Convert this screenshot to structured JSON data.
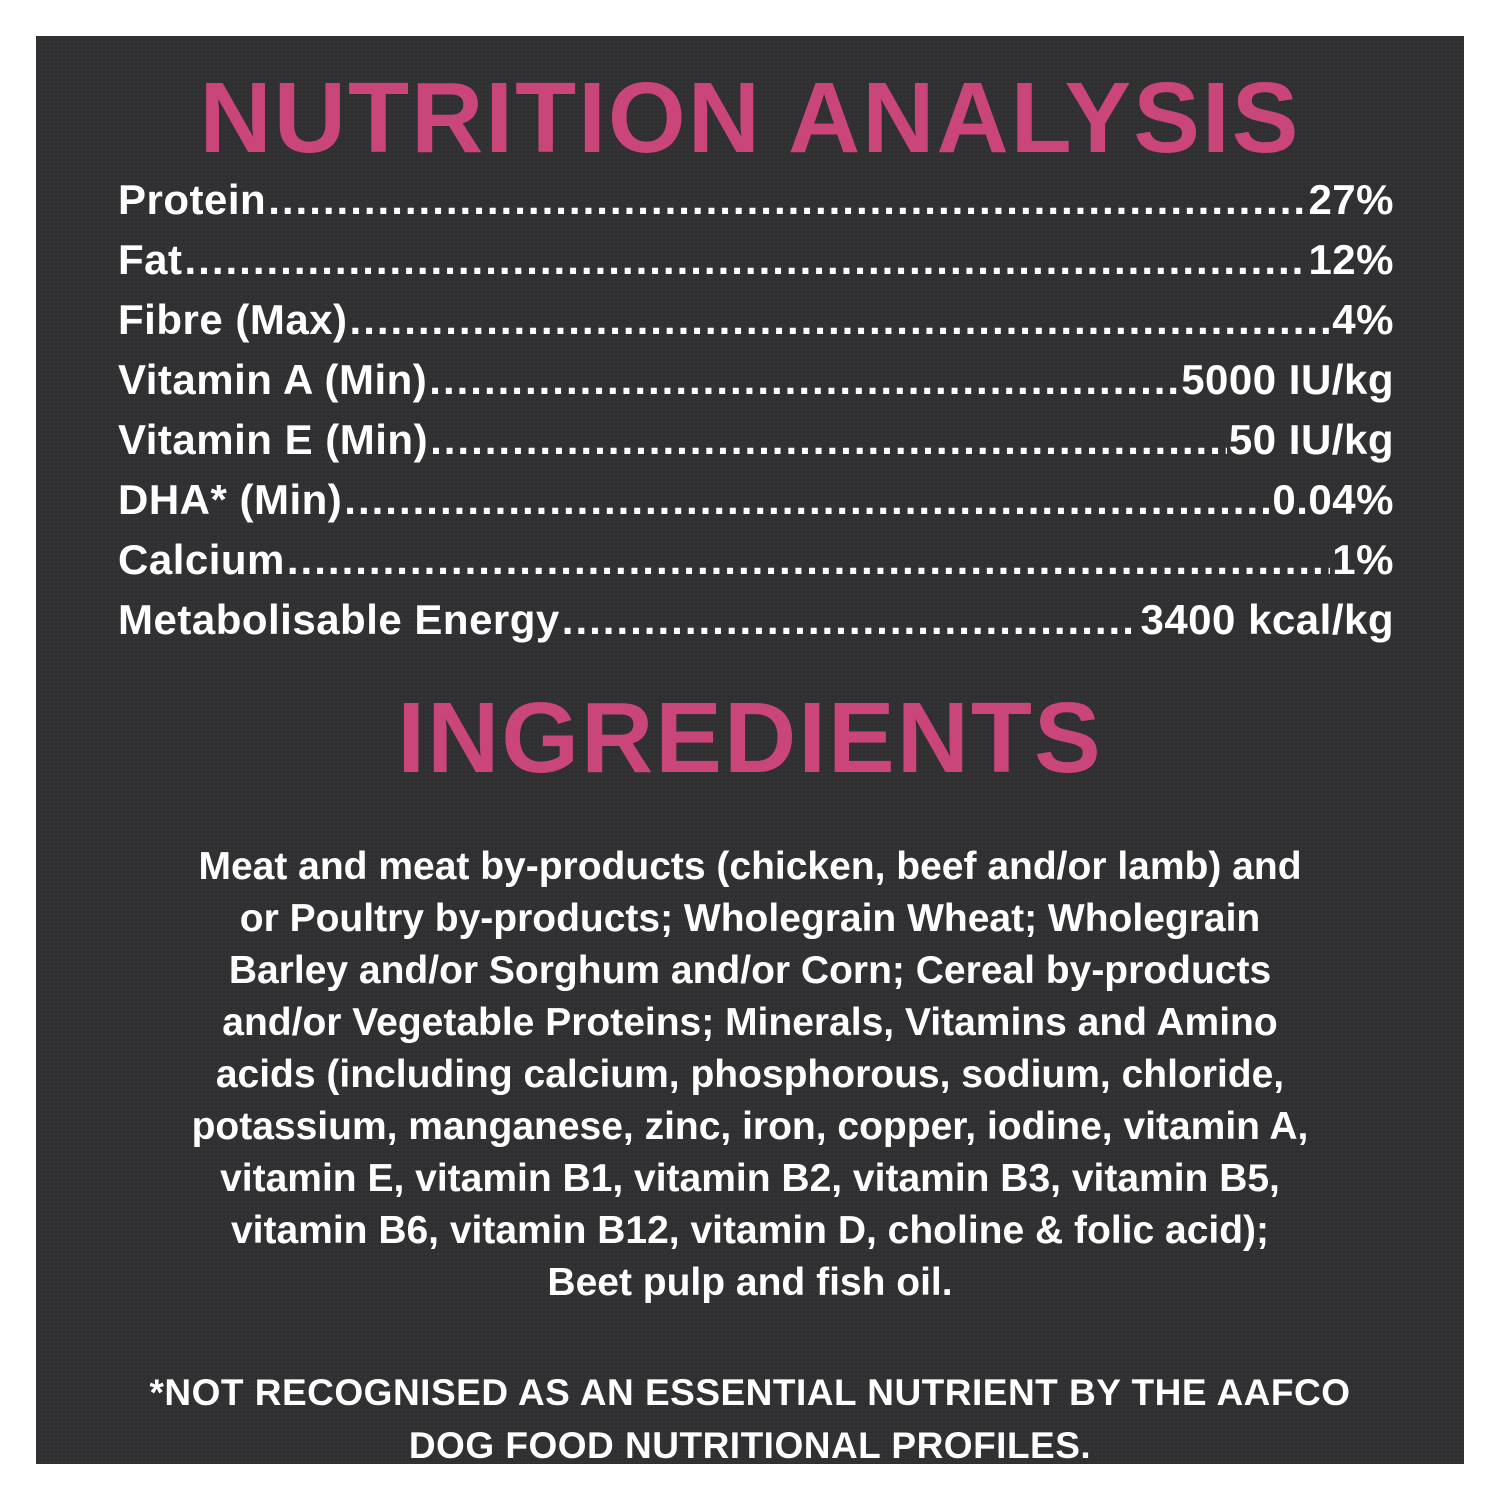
{
  "colors": {
    "heading": "#c9457a",
    "background": "#302f32",
    "text": "#ffffff"
  },
  "nutrition": {
    "title": "NUTRITION ANALYSIS",
    "rows": [
      {
        "label": "Protein",
        "value": "27%"
      },
      {
        "label": "Fat",
        "value": "12%"
      },
      {
        "label": "Fibre (Max)",
        "value": "4%"
      },
      {
        "label": "Vitamin A (Min)",
        "value": "5000 IU/kg"
      },
      {
        "label": "Vitamin E (Min)",
        "value": "50 IU/kg"
      },
      {
        "label": "DHA* (Min)",
        "value": "0.04%"
      },
      {
        "label": "Calcium",
        "value": "1%"
      },
      {
        "label": "Metabolisable Energy",
        "value": "3400 kcal/kg"
      }
    ]
  },
  "ingredients": {
    "title": "INGREDIENTS",
    "lines": [
      "Meat and meat by-products (chicken, beef and/or lamb) and",
      "or Poultry by-products; Wholegrain Wheat; Wholegrain",
      "Barley and/or Sorghum and/or Corn; Cereal by-products",
      "and/or Vegetable Proteins; Minerals, Vitamins and Amino",
      "acids (including calcium, phosphorous, sodium, chloride,",
      "potassium, manganese, zinc, iron, copper, iodine, vitamin A,",
      "vitamin E, vitamin B1, vitamin B2, vitamin B3, vitamin B5,",
      "vitamin B6, vitamin B12, vitamin D, choline & folic acid);",
      "Beet pulp and fish oil."
    ]
  },
  "footnote": {
    "lines": [
      "*NOT RECOGNISED AS AN ESSENTIAL NUTRIENT BY THE AAFCO",
      "DOG FOOD NUTRITIONAL PROFILES."
    ]
  }
}
